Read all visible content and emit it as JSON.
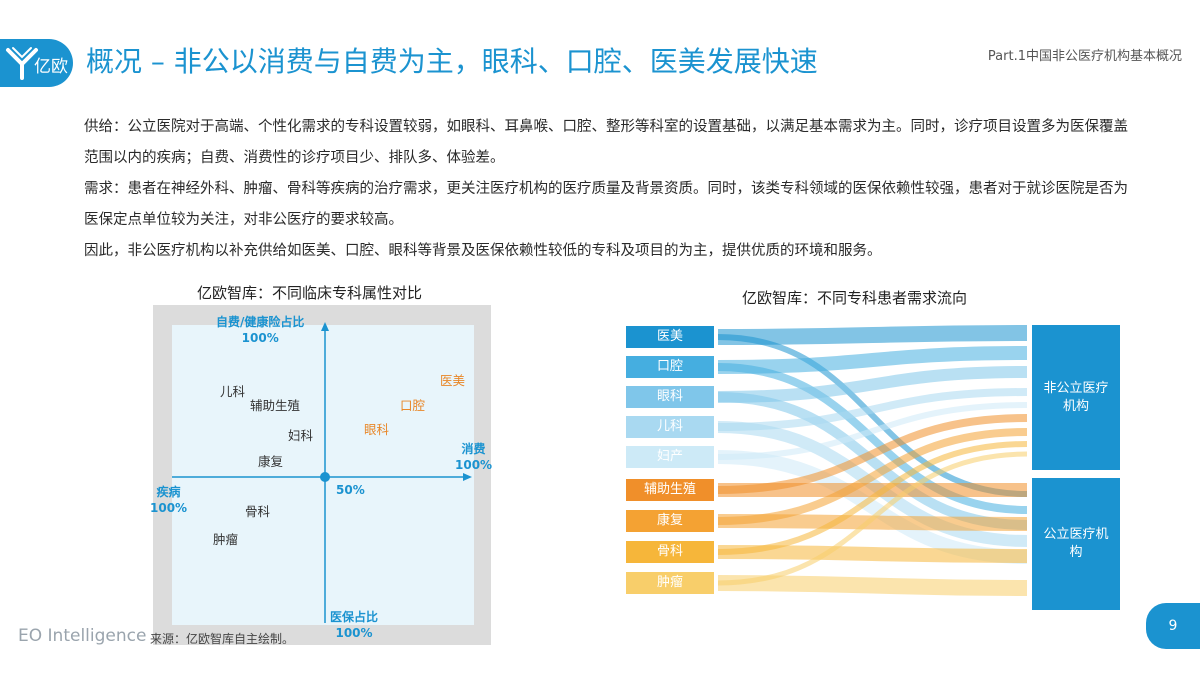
{
  "header": {
    "logo_text": "亿欧",
    "title": "概况 – 非公以消费与自费为主，眼科、口腔、医美发展快速",
    "part": "Part.1中国非公医疗机构基本概况"
  },
  "body": {
    "paragraphs": [
      "供给：公立医院对于高端、个性化需求的专科设置较弱，如眼科、耳鼻喉、口腔、整形等科室的设置基础，以满足基本需求为主。同时，诊疗项目设置多为医保覆盖范围以内的疾病；自费、消费性的诊疗项目少、排队多、体验差。",
      "需求：患者在神经外科、肿瘤、骨科等疾病的治疗需求，更关注医疗机构的医疗质量及背景资质。同时，该类专科领域的医保依赖性较强，患者对于就诊医院是否为医保定点单位较为关注，对非公医疗的要求较高。",
      "因此，非公医疗机构以补充供给如医美、口腔、眼科等背景及医保依赖性较低的专科及项目的为主，提供优质的环境和服务。"
    ]
  },
  "quadrant": {
    "caption": "亿欧智库：不同临床专科属性对比",
    "axis_top": "自费/健康险占比",
    "axis_top_value": "100%",
    "axis_bottom": "医保占比",
    "axis_bottom_value": "100%",
    "axis_left": "疾病",
    "axis_left_value": "100%",
    "axis_right": "消费",
    "axis_right_value": "100%",
    "center_label": "50%",
    "items": {
      "erke": "儿科",
      "fuzhu": "辅助生殖",
      "fuke": "妇科",
      "kangfu": "康复",
      "guke": "骨科",
      "zhongliu": "肿瘤",
      "yimei": "医美",
      "kouqiang": "口腔",
      "yanke": "眼科"
    },
    "colors": {
      "blue": "#1b93d0",
      "orange": "#e8882a",
      "bg": "#e8f5fb",
      "frame": "#dcdcdc"
    }
  },
  "sankey": {
    "caption": "亿欧智库：不同专科患者需求流向",
    "sources": [
      "医美",
      "口腔",
      "眼科",
      "儿科",
      "妇产",
      "辅助生殖",
      "康复",
      "骨科",
      "肿瘤"
    ],
    "targets": [
      "非公立医疗机构",
      "公立医疗机构"
    ],
    "colors": [
      "#1b93d0",
      "#45aee0",
      "#7fc6ea",
      "#a9d9f1",
      "#cdeaf7",
      "#f08f2a",
      "#f4a233",
      "#f6b63a",
      "#f8ce6a"
    ]
  },
  "footer": {
    "brand": "EO Intelligence",
    "source": "来源：亿欧智库自主绘制。",
    "page": "9"
  }
}
